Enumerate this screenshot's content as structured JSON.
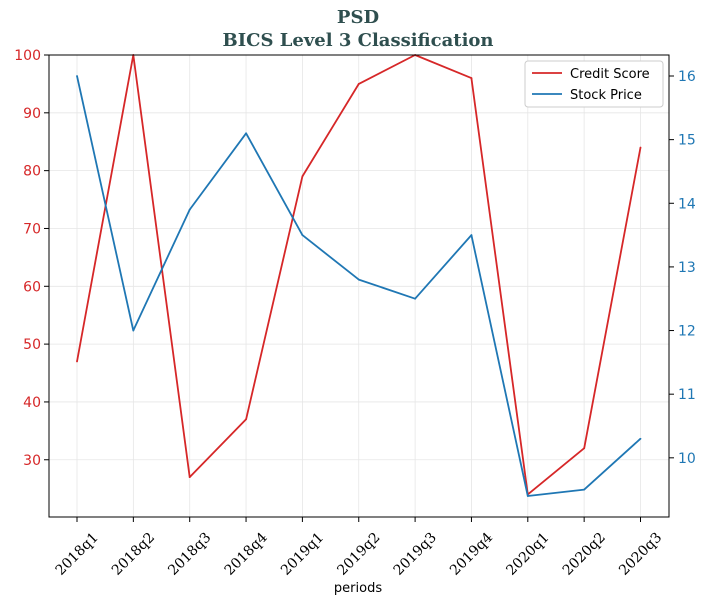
{
  "chart_data": {
    "type": "line",
    "title": "PSD",
    "subtitle": "BICS Level 3 Classification",
    "xlabel": "periods",
    "ylabel_left": "",
    "ylabel_right": "",
    "categories": [
      "2018q1",
      "2018q2",
      "2018q3",
      "2018q4",
      "2019q1",
      "2019q2",
      "2019q3",
      "2019q4",
      "2020q1",
      "2020q2",
      "2020q3"
    ],
    "series": [
      {
        "name": "Credit Score",
        "axis": "left",
        "color": "#d62728",
        "values": [
          47,
          100,
          27,
          37,
          79,
          95,
          100,
          96,
          24,
          32,
          84
        ]
      },
      {
        "name": "Stock Price",
        "axis": "right",
        "color": "#1f77b4",
        "values": [
          16.0,
          12.0,
          13.9,
          15.1,
          13.5,
          12.8,
          12.5,
          13.5,
          9.4,
          9.5,
          10.3
        ]
      }
    ],
    "y_left": {
      "ylim": [
        20.1,
        100
      ],
      "ticks": [
        30,
        40,
        50,
        60,
        70,
        80,
        90,
        100
      ],
      "color": "#d62728"
    },
    "y_right": {
      "ylim": [
        9.07,
        16.33
      ],
      "ticks": [
        10,
        11,
        12,
        13,
        14,
        15,
        16
      ],
      "color": "#1f77b4"
    },
    "grid": true,
    "legend_position": "top-right"
  }
}
